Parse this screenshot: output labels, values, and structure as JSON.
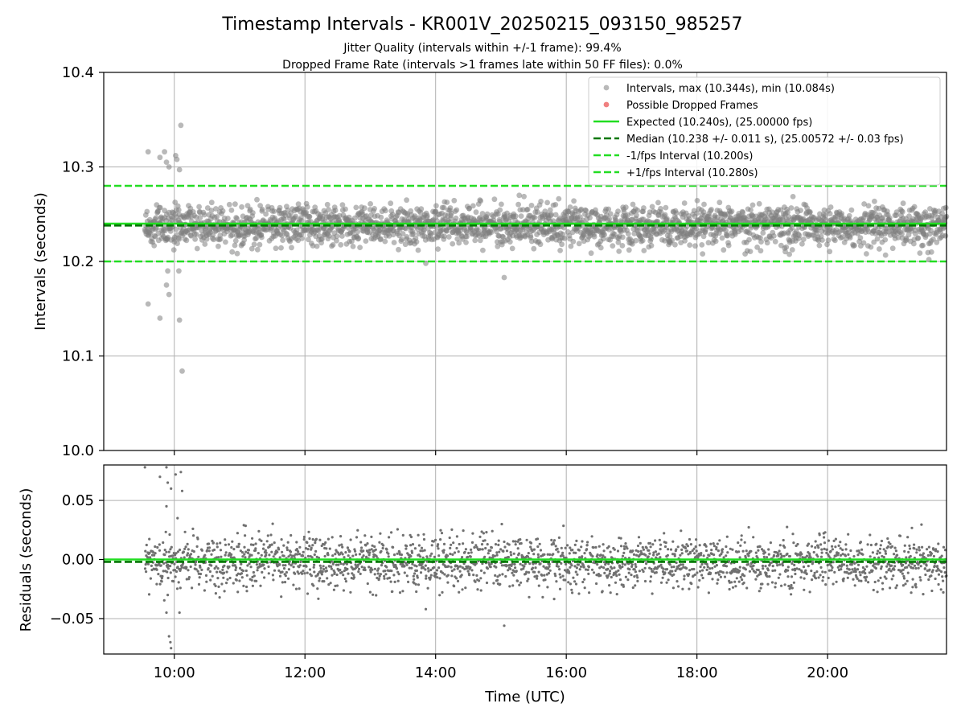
{
  "chart_data": {
    "type": "scatter",
    "title": "Timestamp Intervals - KR001V_20250215_093150_985257",
    "subtitle_lines": [
      "Jitter Quality (intervals within +/-1 frame): 99.4%",
      "Dropped Frame Rate (intervals >1 frames late within 50 FF files): 0.0%"
    ],
    "xlabel": "Time (UTC)",
    "x_tick_labels": [
      "10:00",
      "12:00",
      "14:00",
      "16:00",
      "18:00",
      "20:00"
    ],
    "x_ticks_hours": [
      10,
      12,
      14,
      16,
      18,
      20
    ],
    "x_range_hours": [
      8.92,
      21.82
    ],
    "data_x_range_hours": [
      9.55,
      21.82
    ],
    "grid": true,
    "legend_position": "top-right",
    "top_panel": {
      "ylabel": "Intervals (seconds)",
      "ylim": [
        10.0,
        10.4
      ],
      "y_ticks": [
        10.0,
        10.1,
        10.2,
        10.3,
        10.4
      ],
      "y_tick_labels": [
        "10.0",
        "10.1",
        "10.2",
        "10.3",
        "10.4"
      ],
      "series": [
        {
          "name": "Intervals, max (10.344s), min (10.084s)",
          "kind": "scatter",
          "color": "#808080",
          "max": 10.344,
          "min": 10.084
        },
        {
          "name": "Possible Dropped Frames",
          "kind": "scatter",
          "color": "#f08080",
          "count": 0
        },
        {
          "name": "Expected (10.240s), (25.00000 fps)",
          "kind": "hline",
          "value": 10.24,
          "color": "#22dd22",
          "style": "solid"
        },
        {
          "name": "Median (10.238 +/- 0.011 s), (25.00572 +/- 0.03 fps)",
          "kind": "hline",
          "value": 10.238,
          "color": "#007700",
          "style": "dashed"
        },
        {
          "name": "-1/fps Interval (10.200s)",
          "kind": "hline",
          "value": 10.2,
          "color": "#22dd22",
          "style": "dashed"
        },
        {
          "name": "+1/fps Interval (10.280s)",
          "kind": "hline",
          "value": 10.28,
          "color": "#22dd22",
          "style": "dashed"
        }
      ],
      "central_value": 10.238,
      "spread_std": 0.011,
      "early_outliers": [
        {
          "x": 9.6,
          "y": 10.316
        },
        {
          "x": 9.78,
          "y": 10.31
        },
        {
          "x": 9.85,
          "y": 10.316
        },
        {
          "x": 9.88,
          "y": 10.305
        },
        {
          "x": 9.92,
          "y": 10.3
        },
        {
          "x": 10.02,
          "y": 10.312
        },
        {
          "x": 10.04,
          "y": 10.308
        },
        {
          "x": 10.08,
          "y": 10.297
        },
        {
          "x": 10.1,
          "y": 10.344
        },
        {
          "x": 9.6,
          "y": 10.155
        },
        {
          "x": 9.78,
          "y": 10.14
        },
        {
          "x": 9.88,
          "y": 10.175
        },
        {
          "x": 9.92,
          "y": 10.165
        },
        {
          "x": 10.08,
          "y": 10.138
        },
        {
          "x": 10.12,
          "y": 10.084
        },
        {
          "x": 9.9,
          "y": 10.19
        },
        {
          "x": 10.07,
          "y": 10.19
        },
        {
          "x": 15.05,
          "y": 10.183
        },
        {
          "x": 13.85,
          "y": 10.198
        },
        {
          "x": 21.55,
          "y": 10.202
        }
      ]
    },
    "bottom_panel": {
      "ylabel": "Residuals (seconds)",
      "ylim": [
        -0.08,
        0.08
      ],
      "y_ticks": [
        0.05,
        0.0,
        -0.05
      ],
      "y_tick_labels": [
        "0.05",
        "0.00",
        "−0.05"
      ],
      "series": [
        {
          "name": "Residuals",
          "kind": "scatter",
          "color": "#707070"
        },
        {
          "name": "Expected",
          "kind": "hline",
          "value": 0.0,
          "color": "#22dd22",
          "style": "solid"
        },
        {
          "name": "Median",
          "kind": "hline",
          "value": -0.002,
          "color": "#007700",
          "style": "dashed"
        }
      ],
      "central_value": -0.002,
      "spread_std": 0.011,
      "early_outliers": [
        {
          "x": 9.55,
          "y": 0.078
        },
        {
          "x": 9.78,
          "y": 0.07
        },
        {
          "x": 9.88,
          "y": 0.078
        },
        {
          "x": 9.9,
          "y": 0.065
        },
        {
          "x": 9.95,
          "y": 0.06
        },
        {
          "x": 10.02,
          "y": 0.072
        },
        {
          "x": 10.1,
          "y": 0.074
        },
        {
          "x": 10.12,
          "y": 0.058
        },
        {
          "x": 10.05,
          "y": 0.035
        },
        {
          "x": 9.88,
          "y": 0.045
        },
        {
          "x": 9.88,
          "y": -0.045
        },
        {
          "x": 9.92,
          "y": -0.065
        },
        {
          "x": 9.94,
          "y": -0.07
        },
        {
          "x": 9.95,
          "y": -0.075
        },
        {
          "x": 10.08,
          "y": -0.045
        },
        {
          "x": 9.9,
          "y": -0.03
        },
        {
          "x": 13.85,
          "y": -0.042
        },
        {
          "x": 15.05,
          "y": -0.056
        }
      ]
    }
  }
}
